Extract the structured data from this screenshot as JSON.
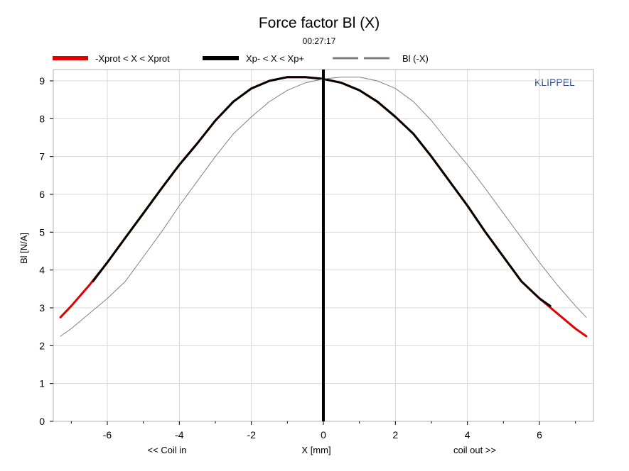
{
  "chart_data": {
    "type": "line",
    "title": "Force factor Bl (X)",
    "subtitle": "00:27:17",
    "xlabel": "X [mm]",
    "xlabel_left": "<< Coil in",
    "xlabel_right": "coil out >>",
    "ylabel": "Bl [N/A]",
    "watermark": "KLIPPEL",
    "xlim": [
      -7.5,
      7.5
    ],
    "ylim": [
      0,
      9.3
    ],
    "xticks": [
      -6,
      -4,
      -2,
      0,
      2,
      4,
      6
    ],
    "yticks": [
      0,
      1,
      2,
      3,
      4,
      5,
      6,
      7,
      8,
      9
    ],
    "grid": true,
    "legend_placement": "top",
    "series": [
      {
        "name": "-Xprot < X < Xprot",
        "color": "#e00000",
        "style": "solid-thick",
        "x": [
          -7.3,
          -7.0,
          -6.5,
          -6.0,
          -5.5,
          -5.0,
          -4.5,
          -4.0,
          -3.5,
          -3.0,
          -2.5,
          -2.0,
          -1.5,
          -1.0,
          -0.5,
          0.0,
          0.5,
          1.0,
          1.5,
          2.0,
          2.5,
          3.0,
          3.5,
          4.0,
          4.5,
          5.0,
          5.5,
          6.0,
          6.5,
          7.0,
          7.3
        ],
        "y": [
          2.75,
          3.05,
          3.6,
          4.2,
          4.85,
          5.5,
          6.15,
          6.78,
          7.35,
          7.95,
          8.45,
          8.8,
          9.0,
          9.1,
          9.1,
          9.05,
          8.95,
          8.75,
          8.45,
          8.05,
          7.6,
          7.0,
          6.35,
          5.7,
          5.0,
          4.35,
          3.7,
          3.25,
          2.85,
          2.45,
          2.25
        ]
      },
      {
        "name": "Xp- < X < Xp+",
        "color": "#000000",
        "style": "solid-thick",
        "x": [
          -6.4,
          -6.0,
          -5.5,
          -5.0,
          -4.5,
          -4.0,
          -3.5,
          -3.0,
          -2.5,
          -2.0,
          -1.5,
          -1.0,
          -0.5,
          0.0,
          0.5,
          1.0,
          1.5,
          2.0,
          2.5,
          3.0,
          3.5,
          4.0,
          4.5,
          5.0,
          5.5,
          6.0,
          6.3
        ],
        "y": [
          3.7,
          4.2,
          4.85,
          5.5,
          6.15,
          6.78,
          7.35,
          7.95,
          8.45,
          8.8,
          9.0,
          9.1,
          9.1,
          9.05,
          8.95,
          8.75,
          8.45,
          8.05,
          7.6,
          7.0,
          6.35,
          5.7,
          5.0,
          4.35,
          3.7,
          3.25,
          3.05
        ]
      },
      {
        "name": "Bl (-X)",
        "color": "#808080",
        "style": "thin",
        "x": [
          -7.3,
          -7.0,
          -6.5,
          -6.0,
          -5.5,
          -5.0,
          -4.5,
          -4.0,
          -3.5,
          -3.0,
          -2.5,
          -2.0,
          -1.5,
          -1.0,
          -0.5,
          0.0,
          0.5,
          1.0,
          1.5,
          2.0,
          2.5,
          3.0,
          3.5,
          4.0,
          4.5,
          5.0,
          5.5,
          6.0,
          6.5,
          7.0,
          7.3
        ],
        "y": [
          2.25,
          2.45,
          2.85,
          3.25,
          3.7,
          4.35,
          5.0,
          5.7,
          6.35,
          7.0,
          7.6,
          8.05,
          8.45,
          8.75,
          8.95,
          9.05,
          9.1,
          9.1,
          9.0,
          8.8,
          8.45,
          7.95,
          7.35,
          6.78,
          6.15,
          5.5,
          4.85,
          4.2,
          3.6,
          3.05,
          2.75
        ]
      }
    ],
    "vertical_marker": {
      "x": 0,
      "color": "#000000"
    }
  }
}
